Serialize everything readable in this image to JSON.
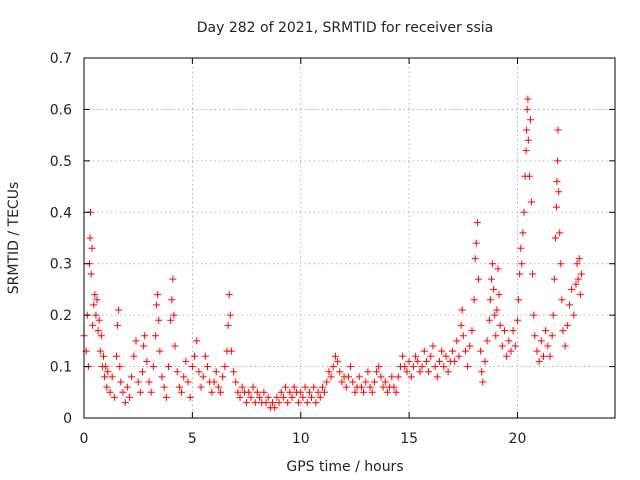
{
  "chart_data": {
    "type": "scatter",
    "title": "Day 282 of 2021, SRMTID for receiver ssia",
    "xlabel": "GPS time / hours",
    "ylabel": "SRMTID / TECUs",
    "xlim": [
      0,
      24.5
    ],
    "ylim": [
      0,
      0.7
    ],
    "x_ticks": [
      0,
      5,
      10,
      15,
      20
    ],
    "x_tick_labels": [
      "0",
      "5",
      "10",
      "15",
      "20"
    ],
    "y_ticks": [
      0,
      0.1,
      0.2,
      0.3,
      0.4,
      0.5,
      0.6,
      0.7
    ],
    "y_tick_labels": [
      "0",
      "0.1",
      "0.2",
      "0.3",
      "0.4",
      "0.5",
      "0.6",
      "0.7"
    ],
    "grid": true,
    "marker": "+",
    "series": [
      {
        "name": "SRMTID",
        "color": "#ff0000",
        "points": [
          [
            0.0,
            0.16
          ],
          [
            0.1,
            0.13
          ],
          [
            0.15,
            0.2
          ],
          [
            0.2,
            0.1
          ],
          [
            0.25,
            0.3
          ],
          [
            0.28,
            0.35
          ],
          [
            0.3,
            0.4
          ],
          [
            0.33,
            0.28
          ],
          [
            0.37,
            0.33
          ],
          [
            0.4,
            0.18
          ],
          [
            0.45,
            0.22
          ],
          [
            0.5,
            0.24
          ],
          [
            0.55,
            0.2
          ],
          [
            0.6,
            0.23
          ],
          [
            0.65,
            0.17
          ],
          [
            0.7,
            0.19
          ],
          [
            0.75,
            0.13
          ],
          [
            0.8,
            0.16
          ],
          [
            0.85,
            0.1
          ],
          [
            0.9,
            0.12
          ],
          [
            0.95,
            0.08
          ],
          [
            1.0,
            0.1
          ],
          [
            1.05,
            0.06
          ],
          [
            1.1,
            0.09
          ],
          [
            1.2,
            0.05
          ],
          [
            1.3,
            0.08
          ],
          [
            1.4,
            0.04
          ],
          [
            1.5,
            0.12
          ],
          [
            1.55,
            0.18
          ],
          [
            1.6,
            0.21
          ],
          [
            1.65,
            0.1
          ],
          [
            1.7,
            0.07
          ],
          [
            1.8,
            0.05
          ],
          [
            1.9,
            0.03
          ],
          [
            2.0,
            0.06
          ],
          [
            2.1,
            0.04
          ],
          [
            2.2,
            0.08
          ],
          [
            2.3,
            0.12
          ],
          [
            2.4,
            0.15
          ],
          [
            2.5,
            0.07
          ],
          [
            2.6,
            0.05
          ],
          [
            2.7,
            0.09
          ],
          [
            2.75,
            0.14
          ],
          [
            2.8,
            0.16
          ],
          [
            2.9,
            0.11
          ],
          [
            3.0,
            0.07
          ],
          [
            3.1,
            0.05
          ],
          [
            3.2,
            0.1
          ],
          [
            3.3,
            0.16
          ],
          [
            3.35,
            0.22
          ],
          [
            3.4,
            0.24
          ],
          [
            3.45,
            0.19
          ],
          [
            3.5,
            0.13
          ],
          [
            3.6,
            0.08
          ],
          [
            3.7,
            0.06
          ],
          [
            3.8,
            0.04
          ],
          [
            3.9,
            0.1
          ],
          [
            4.0,
            0.19
          ],
          [
            4.05,
            0.23
          ],
          [
            4.1,
            0.27
          ],
          [
            4.15,
            0.2
          ],
          [
            4.2,
            0.14
          ],
          [
            4.3,
            0.09
          ],
          [
            4.4,
            0.06
          ],
          [
            4.5,
            0.05
          ],
          [
            4.6,
            0.08
          ],
          [
            4.7,
            0.11
          ],
          [
            4.8,
            0.07
          ],
          [
            4.9,
            0.04
          ],
          [
            5.0,
            0.1
          ],
          [
            5.1,
            0.12
          ],
          [
            5.2,
            0.15
          ],
          [
            5.3,
            0.09
          ],
          [
            5.4,
            0.06
          ],
          [
            5.5,
            0.08
          ],
          [
            5.6,
            0.12
          ],
          [
            5.7,
            0.1
          ],
          [
            5.8,
            0.07
          ],
          [
            5.9,
            0.05
          ],
          [
            6.0,
            0.07
          ],
          [
            6.1,
            0.09
          ],
          [
            6.2,
            0.06
          ],
          [
            6.3,
            0.05
          ],
          [
            6.4,
            0.08
          ],
          [
            6.5,
            0.1
          ],
          [
            6.6,
            0.13
          ],
          [
            6.65,
            0.18
          ],
          [
            6.7,
            0.24
          ],
          [
            6.75,
            0.2
          ],
          [
            6.8,
            0.13
          ],
          [
            6.9,
            0.09
          ],
          [
            7.0,
            0.07
          ],
          [
            7.1,
            0.05
          ],
          [
            7.2,
            0.04
          ],
          [
            7.3,
            0.06
          ],
          [
            7.4,
            0.05
          ],
          [
            7.5,
            0.03
          ],
          [
            7.6,
            0.05
          ],
          [
            7.7,
            0.04
          ],
          [
            7.8,
            0.06
          ],
          [
            7.9,
            0.03
          ],
          [
            8.0,
            0.05
          ],
          [
            8.1,
            0.04
          ],
          [
            8.2,
            0.03
          ],
          [
            8.3,
            0.05
          ],
          [
            8.4,
            0.03
          ],
          [
            8.5,
            0.04
          ],
          [
            8.6,
            0.02
          ],
          [
            8.7,
            0.03
          ],
          [
            8.8,
            0.02
          ],
          [
            8.9,
            0.04
          ],
          [
            9.0,
            0.03
          ],
          [
            9.1,
            0.05
          ],
          [
            9.2,
            0.04
          ],
          [
            9.3,
            0.06
          ],
          [
            9.4,
            0.03
          ],
          [
            9.5,
            0.05
          ],
          [
            9.6,
            0.04
          ],
          [
            9.7,
            0.06
          ],
          [
            9.8,
            0.05
          ],
          [
            9.9,
            0.03
          ],
          [
            10.0,
            0.05
          ],
          [
            10.1,
            0.04
          ],
          [
            10.2,
            0.06
          ],
          [
            10.3,
            0.03
          ],
          [
            10.4,
            0.05
          ],
          [
            10.5,
            0.04
          ],
          [
            10.6,
            0.06
          ],
          [
            10.7,
            0.03
          ],
          [
            10.8,
            0.05
          ],
          [
            10.9,
            0.04
          ],
          [
            11.0,
            0.06
          ],
          [
            11.1,
            0.05
          ],
          [
            11.2,
            0.07
          ],
          [
            11.3,
            0.09
          ],
          [
            11.4,
            0.08
          ],
          [
            11.5,
            0.1
          ],
          [
            11.6,
            0.12
          ],
          [
            11.7,
            0.11
          ],
          [
            11.8,
            0.09
          ],
          [
            11.9,
            0.07
          ],
          [
            12.0,
            0.08
          ],
          [
            12.1,
            0.06
          ],
          [
            12.2,
            0.08
          ],
          [
            12.3,
            0.1
          ],
          [
            12.4,
            0.07
          ],
          [
            12.5,
            0.05
          ],
          [
            12.6,
            0.06
          ],
          [
            12.7,
            0.08
          ],
          [
            12.8,
            0.06
          ],
          [
            12.9,
            0.05
          ],
          [
            13.0,
            0.07
          ],
          [
            13.1,
            0.09
          ],
          [
            13.2,
            0.06
          ],
          [
            13.3,
            0.05
          ],
          [
            13.4,
            0.07
          ],
          [
            13.5,
            0.09
          ],
          [
            13.6,
            0.1
          ],
          [
            13.7,
            0.08
          ],
          [
            13.8,
            0.06
          ],
          [
            13.9,
            0.07
          ],
          [
            14.0,
            0.05
          ],
          [
            14.1,
            0.06
          ],
          [
            14.2,
            0.08
          ],
          [
            14.3,
            0.06
          ],
          [
            14.4,
            0.05
          ],
          [
            14.5,
            0.08
          ],
          [
            14.6,
            0.1
          ],
          [
            14.7,
            0.12
          ],
          [
            14.8,
            0.1
          ],
          [
            14.9,
            0.09
          ],
          [
            15.0,
            0.11
          ],
          [
            15.1,
            0.08
          ],
          [
            15.2,
            0.1
          ],
          [
            15.3,
            0.12
          ],
          [
            15.4,
            0.11
          ],
          [
            15.5,
            0.09
          ],
          [
            15.6,
            0.1
          ],
          [
            15.7,
            0.13
          ],
          [
            15.8,
            0.11
          ],
          [
            15.9,
            0.09
          ],
          [
            16.0,
            0.12
          ],
          [
            16.1,
            0.14
          ],
          [
            16.2,
            0.1
          ],
          [
            16.3,
            0.08
          ],
          [
            16.4,
            0.11
          ],
          [
            16.5,
            0.13
          ],
          [
            16.6,
            0.1
          ],
          [
            16.7,
            0.12
          ],
          [
            16.8,
            0.09
          ],
          [
            16.9,
            0.11
          ],
          [
            17.0,
            0.13
          ],
          [
            17.1,
            0.11
          ],
          [
            17.2,
            0.15
          ],
          [
            17.3,
            0.12
          ],
          [
            17.4,
            0.18
          ],
          [
            17.45,
            0.21
          ],
          [
            17.5,
            0.16
          ],
          [
            17.6,
            0.13
          ],
          [
            17.7,
            0.1
          ],
          [
            17.8,
            0.14
          ],
          [
            17.9,
            0.17
          ],
          [
            18.0,
            0.23
          ],
          [
            18.05,
            0.31
          ],
          [
            18.1,
            0.34
          ],
          [
            18.15,
            0.38
          ],
          [
            18.2,
            0.27
          ],
          [
            18.3,
            0.13
          ],
          [
            18.35,
            0.09
          ],
          [
            18.4,
            0.07
          ],
          [
            18.5,
            0.11
          ],
          [
            18.6,
            0.15
          ],
          [
            18.7,
            0.19
          ],
          [
            18.75,
            0.23
          ],
          [
            18.8,
            0.27
          ],
          [
            18.85,
            0.3
          ],
          [
            18.9,
            0.25
          ],
          [
            18.95,
            0.2
          ],
          [
            19.0,
            0.16
          ],
          [
            19.05,
            0.21
          ],
          [
            19.1,
            0.29
          ],
          [
            19.15,
            0.24
          ],
          [
            19.2,
            0.18
          ],
          [
            19.3,
            0.14
          ],
          [
            19.4,
            0.17
          ],
          [
            19.5,
            0.12
          ],
          [
            19.6,
            0.15
          ],
          [
            19.7,
            0.13
          ],
          [
            19.8,
            0.17
          ],
          [
            19.9,
            0.14
          ],
          [
            20.0,
            0.19
          ],
          [
            20.05,
            0.23
          ],
          [
            20.1,
            0.28
          ],
          [
            20.15,
            0.33
          ],
          [
            20.2,
            0.3
          ],
          [
            20.25,
            0.36
          ],
          [
            20.3,
            0.4
          ],
          [
            20.35,
            0.47
          ],
          [
            20.4,
            0.52
          ],
          [
            20.42,
            0.56
          ],
          [
            20.45,
            0.6
          ],
          [
            20.48,
            0.62
          ],
          [
            20.5,
            0.54
          ],
          [
            20.55,
            0.47
          ],
          [
            20.6,
            0.58
          ],
          [
            20.65,
            0.42
          ],
          [
            20.7,
            0.28
          ],
          [
            20.75,
            0.2
          ],
          [
            20.8,
            0.16
          ],
          [
            20.9,
            0.13
          ],
          [
            21.0,
            0.11
          ],
          [
            21.1,
            0.15
          ],
          [
            21.2,
            0.12
          ],
          [
            21.3,
            0.17
          ],
          [
            21.4,
            0.14
          ],
          [
            21.5,
            0.12
          ],
          [
            21.6,
            0.16
          ],
          [
            21.65,
            0.2
          ],
          [
            21.7,
            0.27
          ],
          [
            21.75,
            0.35
          ],
          [
            21.8,
            0.41
          ],
          [
            21.82,
            0.46
          ],
          [
            21.85,
            0.5
          ],
          [
            21.87,
            0.56
          ],
          [
            21.9,
            0.44
          ],
          [
            21.95,
            0.36
          ],
          [
            22.0,
            0.3
          ],
          [
            22.05,
            0.23
          ],
          [
            22.1,
            0.17
          ],
          [
            22.2,
            0.14
          ],
          [
            22.3,
            0.18
          ],
          [
            22.4,
            0.22
          ],
          [
            22.5,
            0.25
          ],
          [
            22.6,
            0.2
          ],
          [
            22.7,
            0.26
          ],
          [
            22.75,
            0.3
          ],
          [
            22.8,
            0.27
          ],
          [
            22.85,
            0.31
          ],
          [
            22.9,
            0.24
          ],
          [
            22.95,
            0.28
          ]
        ]
      }
    ]
  }
}
